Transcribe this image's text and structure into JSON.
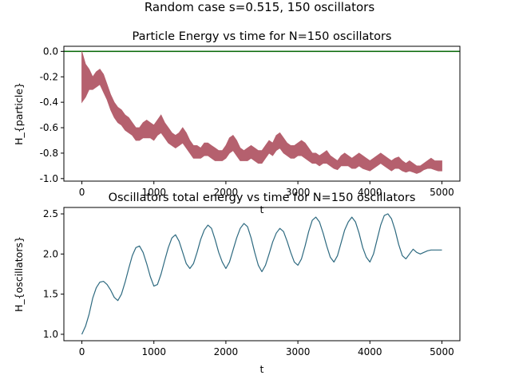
{
  "figure": {
    "suptitle": "Random case s=0.515, 150 oscillators"
  },
  "chart_data": [
    {
      "type": "line",
      "title": "Particle Energy vs time for N=150 oscillators",
      "xlabel": "t",
      "ylabel": "H_{particle}",
      "xlim": [
        -250,
        5250
      ],
      "ylim": [
        -1.02,
        0.04
      ],
      "xticks": [
        0,
        1000,
        2000,
        3000,
        4000,
        5000
      ],
      "yticks": [
        "0.0",
        "-0.2",
        "-0.4",
        "-0.6",
        "-0.8",
        "-1.0"
      ],
      "ytick_values": [
        0.0,
        -0.2,
        -0.4,
        -0.6,
        -0.8,
        -1.0
      ],
      "grid": false,
      "reference_line": {
        "y": 0.0,
        "color": "#006400"
      },
      "series": [
        {
          "color": "#b5606e",
          "band": true,
          "x": [
            0,
            50,
            100,
            150,
            200,
            250,
            300,
            350,
            400,
            450,
            500,
            550,
            600,
            650,
            700,
            750,
            800,
            850,
            900,
            950,
            1000,
            1050,
            1100,
            1150,
            1200,
            1250,
            1300,
            1350,
            1400,
            1450,
            1500,
            1550,
            1600,
            1650,
            1700,
            1750,
            1800,
            1850,
            1900,
            1950,
            2000,
            2050,
            2100,
            2150,
            2200,
            2250,
            2300,
            2350,
            2400,
            2450,
            2500,
            2550,
            2600,
            2650,
            2700,
            2750,
            2800,
            2850,
            2900,
            2950,
            3000,
            3050,
            3100,
            3150,
            3200,
            3250,
            3300,
            3350,
            3400,
            3450,
            3500,
            3550,
            3600,
            3650,
            3700,
            3750,
            3800,
            3850,
            3900,
            3950,
            4000,
            4050,
            4100,
            4150,
            4200,
            4250,
            4300,
            4350,
            4400,
            4450,
            4500,
            4550,
            4600,
            4650,
            4700,
            4750,
            4800,
            4850,
            4900,
            4950,
            5000
          ],
          "upper": [
            0.0,
            -0.1,
            -0.14,
            -0.2,
            -0.16,
            -0.14,
            -0.18,
            -0.26,
            -0.34,
            -0.4,
            -0.44,
            -0.46,
            -0.5,
            -0.52,
            -0.56,
            -0.6,
            -0.6,
            -0.56,
            -0.54,
            -0.56,
            -0.58,
            -0.54,
            -0.5,
            -0.56,
            -0.6,
            -0.64,
            -0.66,
            -0.64,
            -0.6,
            -0.64,
            -0.7,
            -0.74,
            -0.74,
            -0.76,
            -0.72,
            -0.72,
            -0.74,
            -0.76,
            -0.78,
            -0.78,
            -0.74,
            -0.68,
            -0.66,
            -0.7,
            -0.76,
            -0.78,
            -0.76,
            -0.74,
            -0.76,
            -0.78,
            -0.78,
            -0.74,
            -0.7,
            -0.72,
            -0.66,
            -0.64,
            -0.68,
            -0.72,
            -0.74,
            -0.74,
            -0.72,
            -0.7,
            -0.72,
            -0.76,
            -0.8,
            -0.8,
            -0.82,
            -0.8,
            -0.78,
            -0.82,
            -0.84,
            -0.86,
            -0.82,
            -0.8,
            -0.82,
            -0.84,
            -0.82,
            -0.8,
            -0.82,
            -0.84,
            -0.86,
            -0.84,
            -0.82,
            -0.8,
            -0.82,
            -0.84,
            -0.86,
            -0.84,
            -0.83,
            -0.86,
            -0.88,
            -0.86,
            -0.88,
            -0.9,
            -0.9,
            -0.88,
            -0.86,
            -0.84,
            -0.86,
            -0.86,
            -0.86
          ],
          "lower": [
            -0.4,
            -0.36,
            -0.3,
            -0.3,
            -0.28,
            -0.26,
            -0.32,
            -0.38,
            -0.46,
            -0.52,
            -0.56,
            -0.58,
            -0.62,
            -0.64,
            -0.66,
            -0.7,
            -0.7,
            -0.68,
            -0.68,
            -0.68,
            -0.7,
            -0.66,
            -0.64,
            -0.68,
            -0.72,
            -0.74,
            -0.76,
            -0.74,
            -0.72,
            -0.76,
            -0.8,
            -0.84,
            -0.84,
            -0.84,
            -0.82,
            -0.82,
            -0.84,
            -0.86,
            -0.86,
            -0.86,
            -0.84,
            -0.8,
            -0.78,
            -0.82,
            -0.86,
            -0.86,
            -0.86,
            -0.84,
            -0.86,
            -0.88,
            -0.88,
            -0.84,
            -0.8,
            -0.82,
            -0.78,
            -0.76,
            -0.8,
            -0.82,
            -0.84,
            -0.84,
            -0.82,
            -0.82,
            -0.84,
            -0.86,
            -0.88,
            -0.88,
            -0.9,
            -0.88,
            -0.88,
            -0.9,
            -0.92,
            -0.93,
            -0.9,
            -0.9,
            -0.9,
            -0.92,
            -0.92,
            -0.9,
            -0.92,
            -0.93,
            -0.94,
            -0.92,
            -0.9,
            -0.88,
            -0.9,
            -0.92,
            -0.94,
            -0.92,
            -0.92,
            -0.94,
            -0.95,
            -0.94,
            -0.95,
            -0.96,
            -0.95,
            -0.93,
            -0.92,
            -0.92,
            -0.93,
            -0.94,
            -0.94
          ]
        }
      ]
    },
    {
      "type": "line",
      "title": "Oscillators total energy vs time for N=150 oscillators",
      "xlabel": "t",
      "ylabel": "H_{oscillators}",
      "xlim": [
        -250,
        5250
      ],
      "ylim": [
        0.92,
        2.58
      ],
      "xticks": [
        0,
        1000,
        2000,
        3000,
        4000,
        5000
      ],
      "yticks": [
        "1.0",
        "1.5",
        "2.0",
        "2.5"
      ],
      "ytick_values": [
        1.0,
        1.5,
        2.0,
        2.5
      ],
      "grid": false,
      "series": [
        {
          "color": "#2e6a80",
          "x": [
            0,
            50,
            100,
            150,
            200,
            250,
            300,
            350,
            400,
            450,
            500,
            550,
            600,
            650,
            700,
            750,
            800,
            850,
            900,
            950,
            1000,
            1050,
            1100,
            1150,
            1200,
            1250,
            1300,
            1350,
            1400,
            1450,
            1500,
            1550,
            1600,
            1650,
            1700,
            1750,
            1800,
            1850,
            1900,
            1950,
            2000,
            2050,
            2100,
            2150,
            2200,
            2250,
            2300,
            2350,
            2400,
            2450,
            2500,
            2550,
            2600,
            2650,
            2700,
            2750,
            2800,
            2850,
            2900,
            2950,
            3000,
            3050,
            3100,
            3150,
            3200,
            3250,
            3300,
            3350,
            3400,
            3450,
            3500,
            3550,
            3600,
            3650,
            3700,
            3750,
            3800,
            3850,
            3900,
            3950,
            4000,
            4050,
            4100,
            4150,
            4200,
            4250,
            4300,
            4350,
            4400,
            4450,
            4500,
            4550,
            4600,
            4650,
            4700,
            4750,
            4800,
            4850,
            4900,
            4950,
            5000
          ],
          "values": [
            1.0,
            1.1,
            1.25,
            1.45,
            1.58,
            1.65,
            1.66,
            1.62,
            1.55,
            1.46,
            1.42,
            1.5,
            1.65,
            1.82,
            1.98,
            2.08,
            2.1,
            2.02,
            1.88,
            1.72,
            1.6,
            1.62,
            1.75,
            1.92,
            2.08,
            2.2,
            2.24,
            2.16,
            2.02,
            1.88,
            1.82,
            1.88,
            2.02,
            2.18,
            2.3,
            2.36,
            2.32,
            2.18,
            2.02,
            1.9,
            1.82,
            1.9,
            2.05,
            2.2,
            2.32,
            2.38,
            2.34,
            2.2,
            2.02,
            1.86,
            1.78,
            1.86,
            2.0,
            2.15,
            2.26,
            2.32,
            2.28,
            2.16,
            2.02,
            1.9,
            1.86,
            1.94,
            2.1,
            2.28,
            2.42,
            2.46,
            2.4,
            2.26,
            2.1,
            1.96,
            1.9,
            1.98,
            2.14,
            2.3,
            2.4,
            2.46,
            2.4,
            2.26,
            2.08,
            1.96,
            1.9,
            2.0,
            2.18,
            2.36,
            2.48,
            2.5,
            2.44,
            2.3,
            2.12,
            1.98,
            1.94,
            2.0,
            2.06,
            2.02,
            2.0,
            2.02,
            2.04,
            2.05,
            2.05,
            2.05,
            2.05
          ]
        }
      ]
    }
  ]
}
